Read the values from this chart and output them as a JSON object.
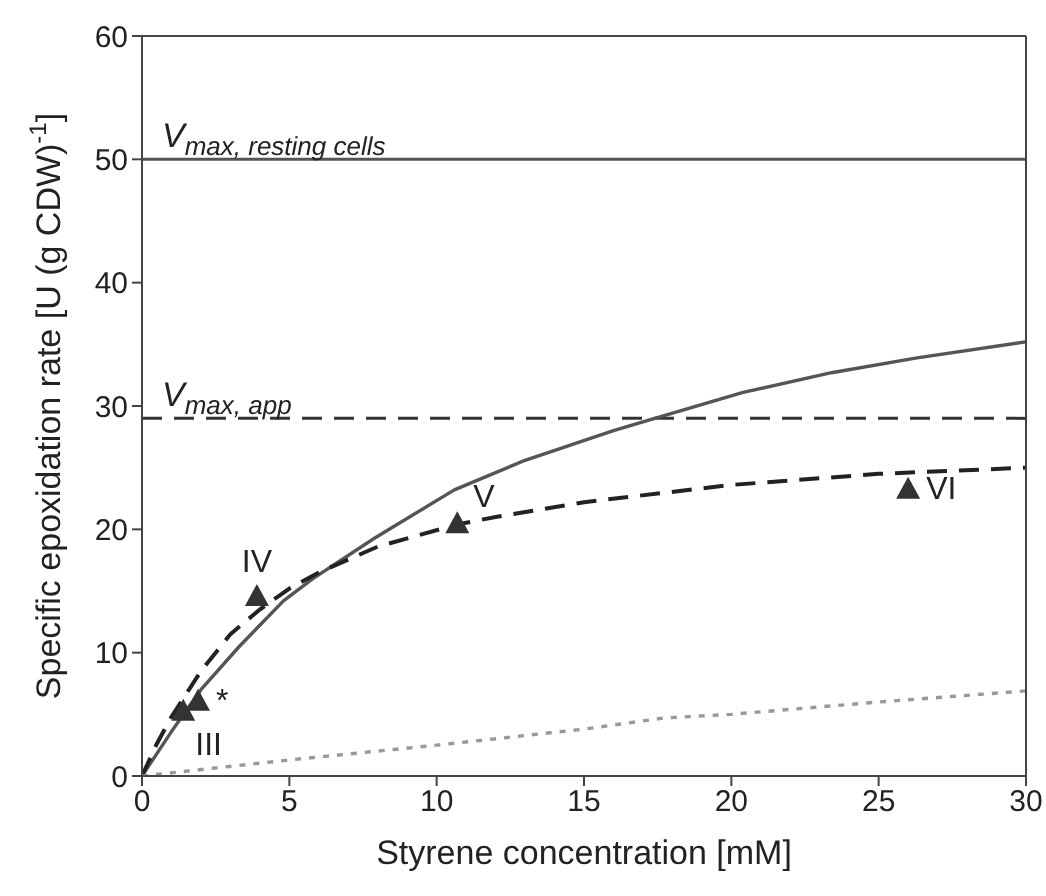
{
  "chart_data": {
    "type": "line",
    "xlabel": "Styrene concentration [mM]",
    "ylabel": "Specific epoxidation rate [U (g CDW)$^{-1}$]",
    "xlim": [
      0,
      30
    ],
    "xticks": [
      0,
      5,
      10,
      15,
      20,
      25,
      30
    ],
    "ylim": [
      0,
      60
    ],
    "yticks": [
      0,
      10,
      20,
      30,
      40,
      50,
      60
    ],
    "legend": false,
    "series": [
      {
        "color": "#555555",
        "line_style": "solid",
        "marker": "none",
        "x": [
          0,
          1,
          2,
          3.3,
          4.8,
          5.8,
          7.9,
          10.6,
          13,
          16,
          17.4,
          20.4,
          23.4,
          26.3,
          30
        ],
        "values": [
          0,
          3.6,
          7,
          10.5,
          14.2,
          16,
          19.3,
          23.2,
          25.6,
          28,
          29,
          31.1,
          32.7,
          33.9,
          35.2
        ]
      },
      {
        "color": "#222222",
        "line_style": "dashed",
        "marker": "none",
        "x": [
          0,
          0.5,
          1,
          2,
          3,
          4,
          5,
          6,
          8,
          10.7,
          12,
          15,
          20,
          25,
          30
        ],
        "values": [
          0,
          2.6,
          4.8,
          8.5,
          11.5,
          13.5,
          15.2,
          16.5,
          18.6,
          20.4,
          21,
          22.2,
          23.6,
          24.5,
          25
        ]
      },
      {
        "color": "#999999",
        "line_style": "dotted",
        "marker": "none",
        "x": [
          0,
          5,
          10,
          15,
          17.7,
          20,
          25,
          30
        ],
        "values": [
          0,
          1.3,
          2.5,
          3.8,
          4.7,
          5,
          6,
          6.9
        ]
      },
      {
        "type": "scatter",
        "color": "#333333",
        "marker": "triangle",
        "x": [
          1.4,
          1.9,
          3.9,
          10.7,
          26
        ],
        "values": [
          5.3,
          6.1,
          14.6,
          20.5,
          23.3
        ]
      }
    ],
    "ref_lines": [
      {
        "axis": "y",
        "value": 50,
        "label": "V$_{max, resting cells}$",
        "color": "#555555",
        "line_style": "solid"
      },
      {
        "axis": "y",
        "value": 29,
        "label": "V$_{max, app}$",
        "color": "#333333",
        "line_style": "dashed"
      }
    ],
    "annotations": [
      {
        "text": "III",
        "x": 1.4,
        "y": 5.3
      },
      {
        "text": "*",
        "x": 1.9,
        "y": 6.1
      },
      {
        "text": "IV",
        "x": 3.9,
        "y": 14.6
      },
      {
        "text": "V",
        "x": 10.7,
        "y": 20.5
      },
      {
        "text": "VI",
        "x": 26,
        "y": 23.3
      }
    ]
  }
}
